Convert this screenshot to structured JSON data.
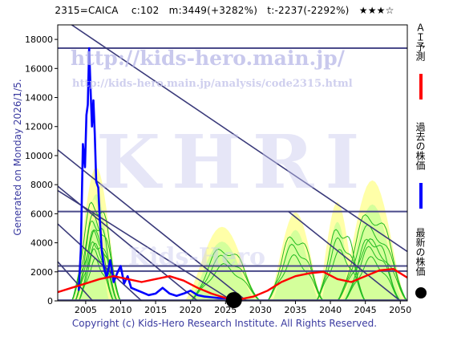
{
  "header": {
    "title": "2315=CAICA　 c:102　m:3449(+3282%)　t:-2237(-2292%)　★★★☆"
  },
  "footer": {
    "copyright": "Copyright (c) Kids-Hero Research Institute. All Rights Reserved."
  },
  "side_label": "Generated on Monday 2026/1/5.",
  "watermarks": {
    "url": "http://kids-hero.main.jp/",
    "analysis_url": "http://kids-hero.main.jp/analysis/code2315.html",
    "brand": "KHRI",
    "brand_small": "Kids-Hero"
  },
  "legend": {
    "ai_label": "ＡＩ予測",
    "past_label": "過去の株価",
    "latest_label": "最新の株価",
    "ai_color": "#ff0000",
    "past_color": "#0000ff",
    "latest_color": "#000000"
  },
  "chart_data": {
    "type": "line",
    "xlim": [
      2001,
      2051
    ],
    "ylim": [
      0,
      19000
    ],
    "x_ticks": [
      2005,
      2010,
      2015,
      2020,
      2025,
      2030,
      2035,
      2040,
      2045,
      2050
    ],
    "y_ticks": [
      0,
      2000,
      4000,
      6000,
      8000,
      10000,
      12000,
      14000,
      16000,
      18000
    ],
    "grid": false,
    "horizontal_levels": [
      17400,
      6150,
      2400,
      2050,
      50
    ],
    "trend_lines": [
      {
        "x": [
          2003,
          2051
        ],
        "y": [
          19000,
          3400
        ]
      },
      {
        "x": [
          2001,
          2028
        ],
        "y": [
          10400,
          0
        ]
      },
      {
        "x": [
          2001,
          2021
        ],
        "y": [
          7900,
          0
        ]
      },
      {
        "x": [
          2001,
          2013
        ],
        "y": [
          5300,
          0
        ]
      },
      {
        "x": [
          2001,
          2006
        ],
        "y": [
          2700,
          0
        ]
      },
      {
        "x": [
          2034,
          2050
        ],
        "y": [
          6150,
          0
        ]
      },
      {
        "x": [
          2001,
          2026
        ],
        "y": [
          7600,
          0
        ]
      }
    ],
    "series": [
      {
        "name": "過去の株価",
        "color": "#0000ff",
        "x": [
          2004.0,
          2004.3,
          2004.6,
          2004.9,
          2005.1,
          2005.3,
          2005.5,
          2005.7,
          2005.9,
          2006.1,
          2006.3,
          2006.5,
          2006.8,
          2007.0,
          2007.3,
          2007.6,
          2008.0,
          2008.5,
          2009.0,
          2009.5,
          2010.0,
          2010.5,
          2011.0,
          2011.5,
          2012.0,
          2013.0,
          2014.0,
          2015.0,
          2016.0,
          2017.0,
          2018.0,
          2019.0,
          2020.0,
          2021.0,
          2022.0,
          2023.0,
          2024.0,
          2025.0,
          2025.9
        ],
        "y": [
          700,
          3500,
          10800,
          9200,
          12800,
          13500,
          17400,
          14500,
          12000,
          13800,
          11500,
          8200,
          7800,
          5800,
          3500,
          2300,
          1600,
          2800,
          1300,
          1900,
          2400,
          1200,
          1700,
          900,
          800,
          600,
          400,
          500,
          900,
          500,
          350,
          500,
          700,
          400,
          300,
          250,
          200,
          180,
          102
        ]
      },
      {
        "name": "ＡＩ予測",
        "color": "#ff0000",
        "x": [
          2001,
          2003,
          2005,
          2007,
          2009,
          2011,
          2013,
          2015,
          2017,
          2019,
          2021,
          2023,
          2025,
          2027,
          2029,
          2031,
          2033,
          2035,
          2037,
          2039,
          2041,
          2043,
          2045,
          2047,
          2049,
          2051
        ],
        "y": [
          600,
          900,
          1200,
          1500,
          1700,
          1500,
          1300,
          1500,
          1700,
          1400,
          900,
          500,
          200,
          100,
          300,
          700,
          1300,
          1700,
          1900,
          2000,
          1500,
          1300,
          1700,
          2100,
          2200,
          1600
        ]
      }
    ],
    "latest_point": {
      "x": 2026.2,
      "y": 102
    }
  }
}
